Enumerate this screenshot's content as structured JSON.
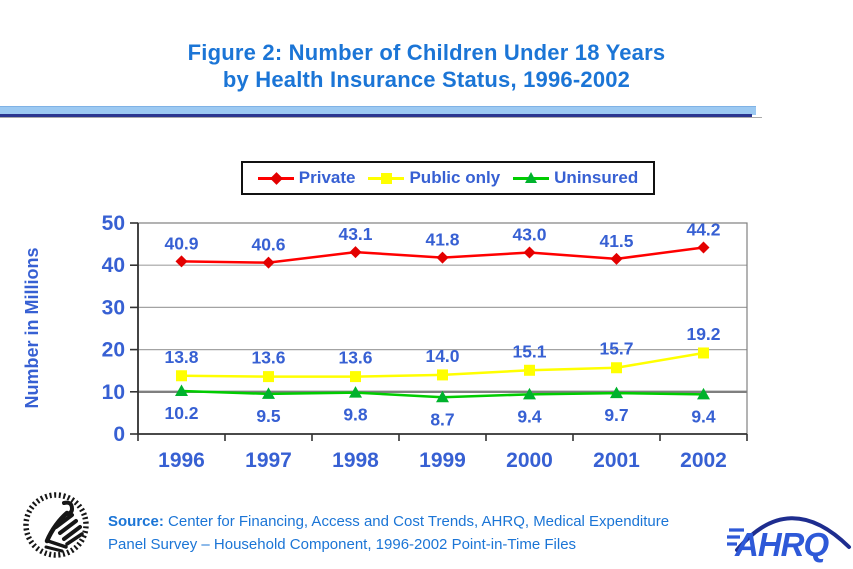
{
  "title": {
    "line1": "Figure 2: Number of Children Under 18 Years",
    "line2": "by Health Insurance Status, 1996-2002"
  },
  "chart_data": {
    "type": "line",
    "categories": [
      "1996",
      "1997",
      "1998",
      "1999",
      "2000",
      "2001",
      "2002"
    ],
    "series": [
      {
        "name": "Private",
        "color": "#FF0000",
        "marker_color": "#E30000",
        "marker": "diamond",
        "values": [
          40.9,
          40.6,
          43.1,
          41.8,
          43.0,
          41.5,
          44.2
        ]
      },
      {
        "name": "Public only",
        "color": "#FFFF00",
        "marker_color": "#FFFF00",
        "marker": "square",
        "values": [
          13.8,
          13.6,
          13.6,
          14.0,
          15.1,
          15.7,
          19.2
        ]
      },
      {
        "name": "Uninsured",
        "color": "#00CC00",
        "marker_color": "#00B22D",
        "marker": "triangle",
        "values": [
          10.2,
          9.5,
          9.8,
          8.7,
          9.4,
          9.7,
          9.4
        ]
      }
    ],
    "ylabel": "Number in Millions",
    "xlabel": "",
    "ylim": [
      0,
      50
    ],
    "yticks": [
      0,
      10,
      20,
      30,
      40,
      50
    ],
    "grid": true,
    "legend_position": "top",
    "data_labels": true
  },
  "source": {
    "label": "Source:",
    "rest1": " Center for Financing, Access and Cost Trends, AHRQ, Medical Expenditure",
    "line2": "Panel Survey – Household Component, 1996-2002 Point-in-Time Files"
  },
  "logos": {
    "ahrq_text": "AHRQ"
  },
  "colors": {
    "title_blue": "#1B75D6",
    "chart_text_blue": "#3760D3",
    "grid_gray": "#A3A3A3",
    "emph_grid_gray": "#7F7F7F",
    "divider_light_blue": "#9CC9F2",
    "divider_navy": "#2B3690"
  }
}
